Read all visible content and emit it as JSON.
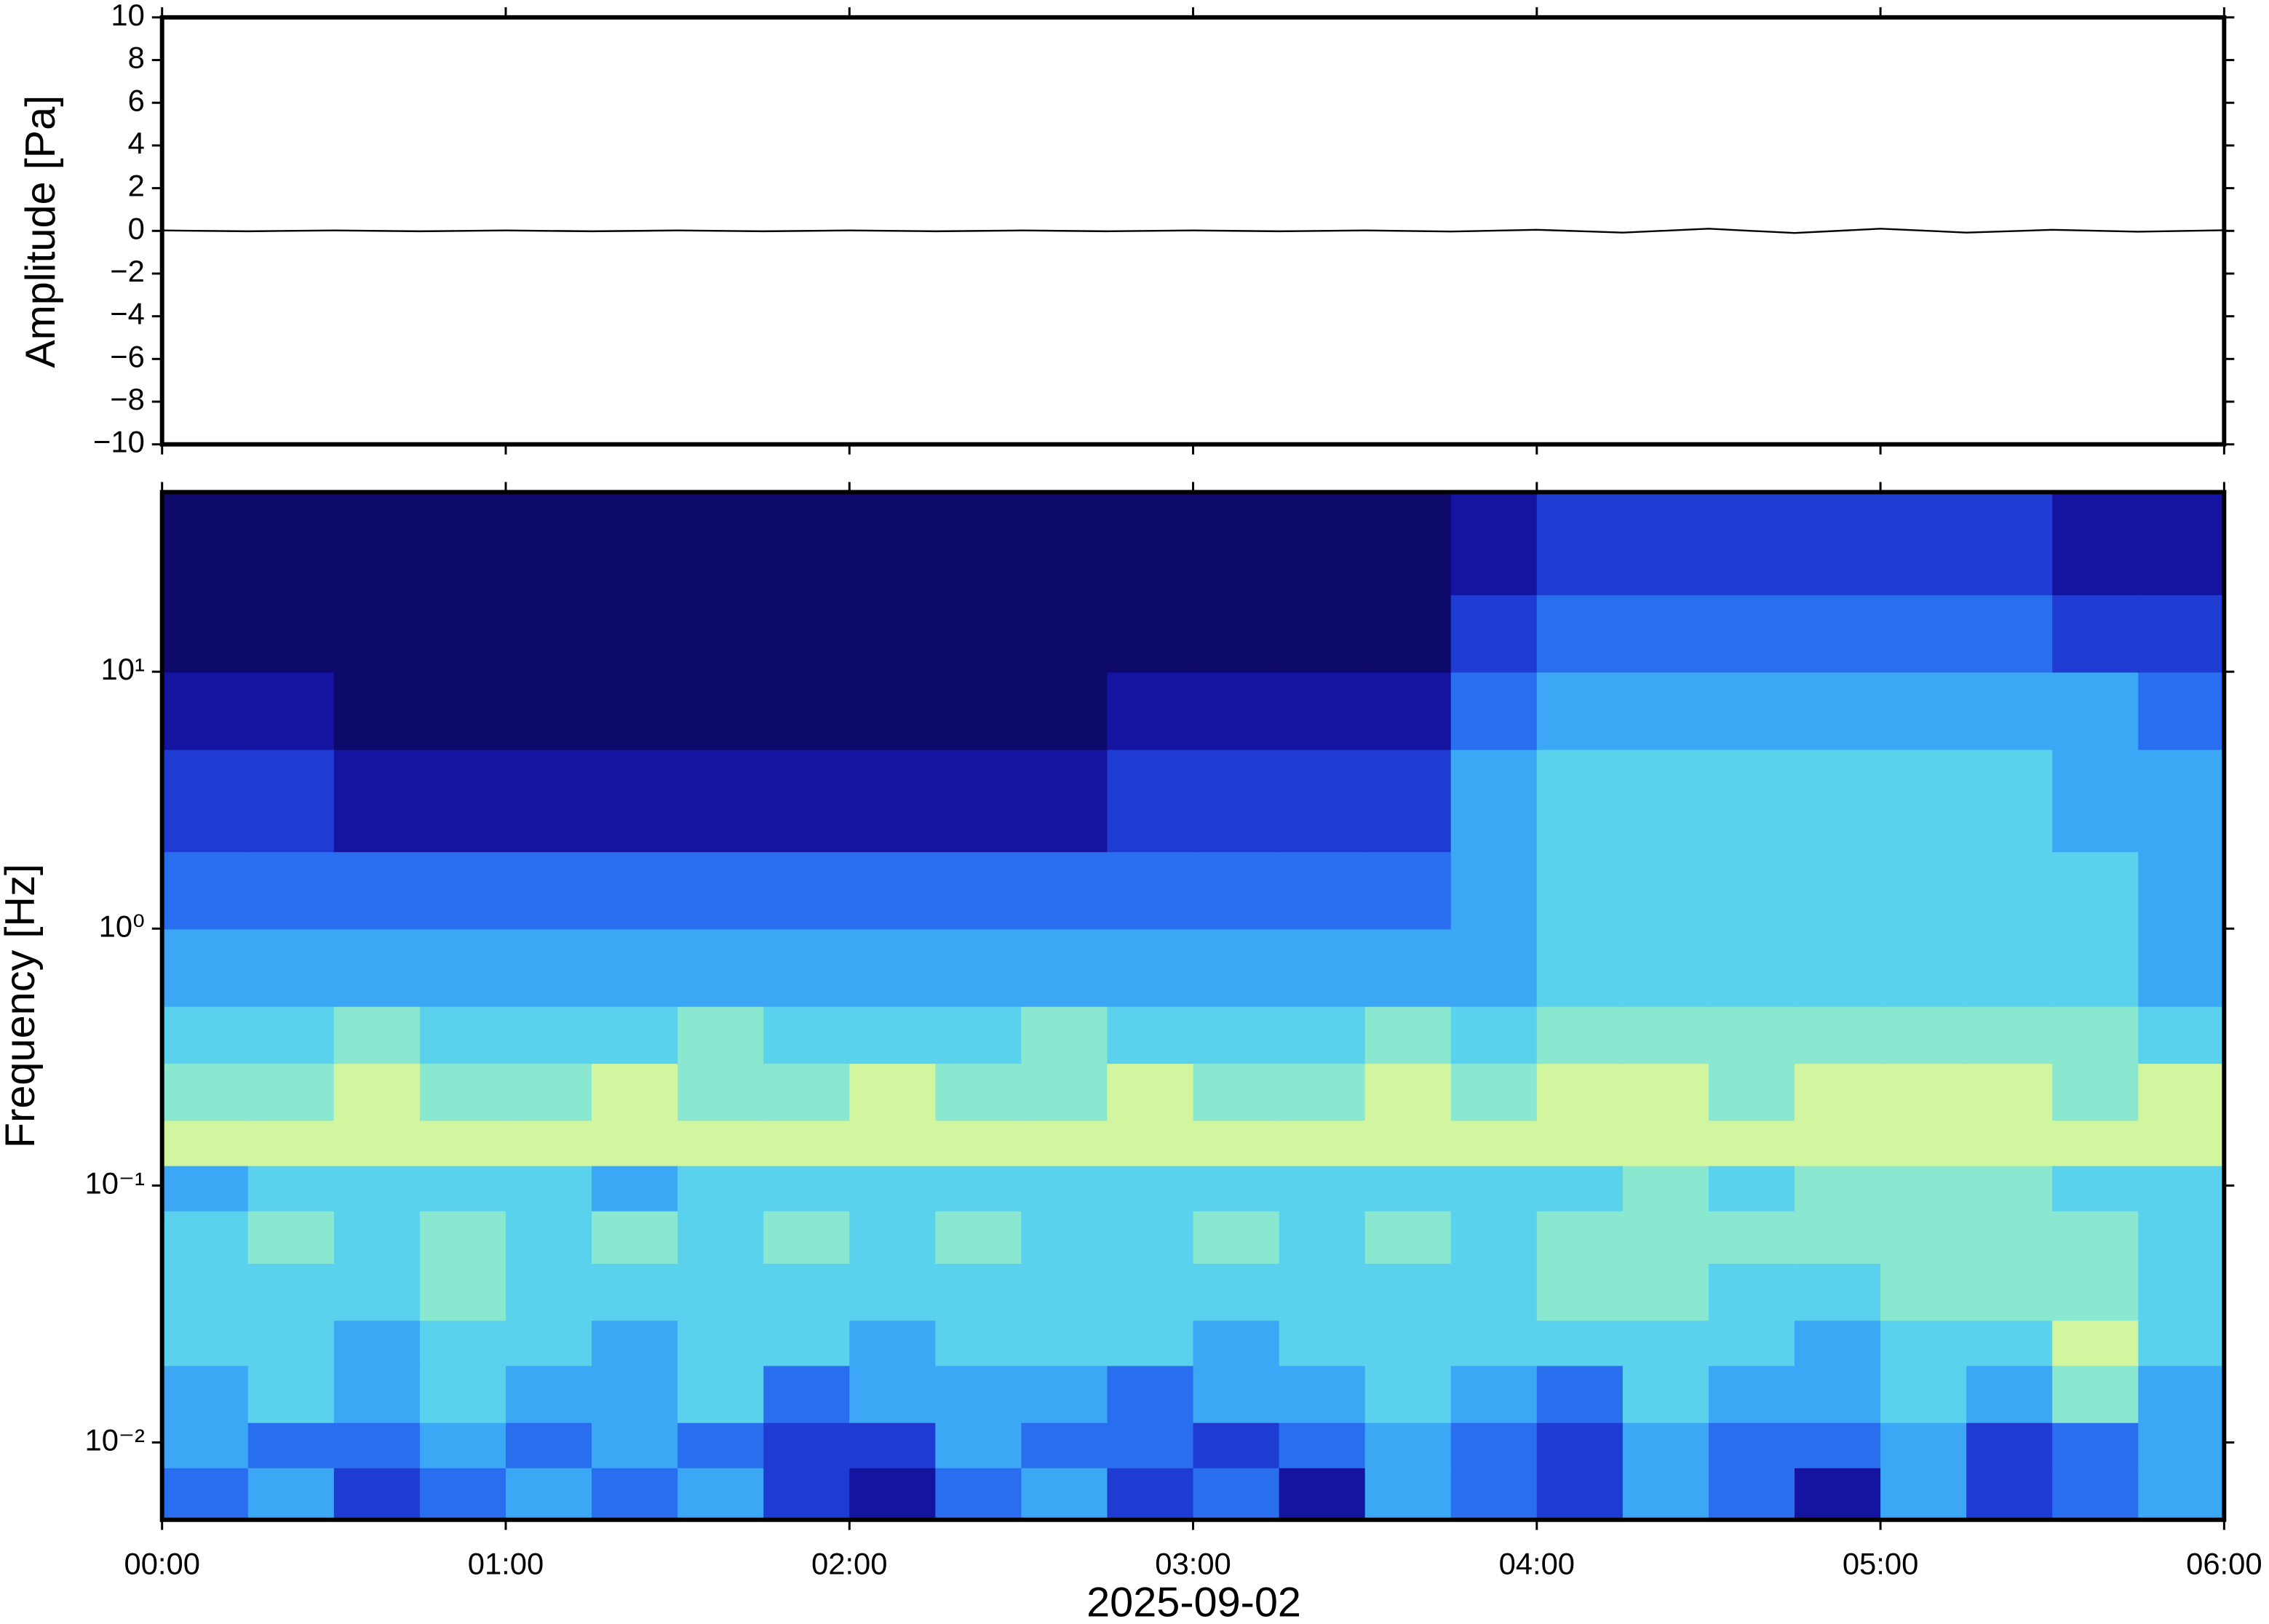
{
  "chart_data": [
    {
      "type": "line",
      "ylabel": "Amplitude [Pa]",
      "xlim": [
        0,
        6
      ],
      "ylim": [
        -10,
        10
      ],
      "yticks": [
        {
          "value": -10,
          "label": "−10"
        },
        {
          "value": -8,
          "label": "−8"
        },
        {
          "value": -6,
          "label": "−6"
        },
        {
          "value": -4,
          "label": "−4"
        },
        {
          "value": -2,
          "label": "−2"
        },
        0,
        2,
        4,
        6,
        8,
        10
      ],
      "x": [
        0,
        0.25,
        0.5,
        0.75,
        1,
        1.25,
        1.5,
        1.75,
        2,
        2.25,
        2.5,
        2.75,
        3,
        3.25,
        3.5,
        3.75,
        4,
        4.25,
        4.5,
        4.75,
        5,
        5.25,
        5.5,
        5.75,
        6
      ],
      "series": [
        {
          "color": "#000000",
          "values": [
            0.02,
            -0.02,
            0.02,
            -0.02,
            0.02,
            -0.02,
            0.02,
            -0.02,
            0.02,
            -0.02,
            0.02,
            -0.02,
            0.02,
            -0.02,
            0.02,
            -0.03,
            0.05,
            -0.08,
            0.1,
            -0.1,
            0.1,
            -0.08,
            0.05,
            -0.04,
            0.03
          ]
        }
      ]
    },
    {
      "type": "heatmap",
      "ylabel": "Frequency [Hz]",
      "xlabel": "2025-09-02",
      "xlim": [
        0,
        6
      ],
      "ylim": [
        0.005,
        50
      ],
      "log_y": true,
      "xticks": [
        {
          "value": 0,
          "label": "00:00"
        },
        {
          "value": 1,
          "label": "01:00"
        },
        {
          "value": 2,
          "label": "02:00"
        },
        {
          "value": 3,
          "label": "03:00"
        },
        {
          "value": 4,
          "label": "04:00"
        },
        {
          "value": 5,
          "label": "05:00"
        },
        {
          "value": 6,
          "label": "06:00"
        }
      ],
      "yticks": [
        {
          "value": 0.01,
          "label": "10⁻²"
        },
        {
          "value": 0.1,
          "label": "10⁻¹"
        },
        {
          "value": 1,
          "label": "10⁰"
        },
        {
          "value": 10,
          "label": "10¹"
        }
      ],
      "colormap": [
        "#0d0a6b",
        "#1414a0",
        "#1e3cd2",
        "#2a6ef0",
        "#3ca8f5",
        "#5ad2ee",
        "#8ae8d0",
        "#d2f5a0"
      ],
      "x_edges": [
        0,
        0.25,
        0.5,
        0.75,
        1,
        1.25,
        1.5,
        1.75,
        2,
        2.25,
        2.5,
        2.75,
        3,
        3.25,
        3.5,
        3.75,
        4,
        4.25,
        4.5,
        4.75,
        5,
        5.25,
        5.5,
        5.75,
        6
      ],
      "y_edges": [
        0.005,
        0.008,
        0.012,
        0.02,
        0.03,
        0.05,
        0.08,
        0.12,
        0.18,
        0.3,
        0.5,
        1,
        2,
        5,
        10,
        20,
        50
      ],
      "values": [
        [
          3,
          4,
          2,
          3,
          4,
          3,
          4,
          2,
          1,
          3,
          4,
          2,
          3,
          1,
          4,
          3,
          2,
          4,
          3,
          1,
          4,
          2,
          3,
          4
        ],
        [
          4,
          3,
          3,
          4,
          3,
          4,
          3,
          2,
          2,
          4,
          3,
          3,
          2,
          3,
          4,
          3,
          2,
          4,
          3,
          3,
          4,
          2,
          3,
          4
        ],
        [
          4,
          5,
          4,
          5,
          4,
          4,
          5,
          3,
          4,
          4,
          4,
          3,
          4,
          4,
          5,
          4,
          3,
          5,
          4,
          4,
          5,
          4,
          6,
          4
        ],
        [
          5,
          5,
          4,
          5,
          5,
          4,
          5,
          5,
          4,
          5,
          5,
          5,
          4,
          5,
          5,
          5,
          5,
          5,
          5,
          4,
          5,
          5,
          7,
          5
        ],
        [
          5,
          5,
          5,
          6,
          5,
          5,
          5,
          5,
          5,
          5,
          5,
          5,
          5,
          5,
          5,
          5,
          6,
          6,
          5,
          5,
          6,
          6,
          6,
          5
        ],
        [
          5,
          6,
          5,
          6,
          5,
          6,
          5,
          6,
          5,
          6,
          5,
          5,
          6,
          5,
          6,
          5,
          6,
          6,
          6,
          6,
          6,
          6,
          6,
          5
        ],
        [
          4,
          5,
          5,
          5,
          5,
          4,
          5,
          5,
          5,
          5,
          5,
          5,
          5,
          5,
          5,
          5,
          5,
          6,
          5,
          6,
          6,
          6,
          5,
          5
        ],
        [
          7,
          7,
          7,
          7,
          7,
          7,
          7,
          7,
          7,
          7,
          7,
          7,
          7,
          7,
          7,
          7,
          7,
          7,
          7,
          7,
          7,
          7,
          7,
          7
        ],
        [
          6,
          6,
          7,
          6,
          6,
          7,
          6,
          6,
          7,
          6,
          6,
          7,
          6,
          6,
          7,
          6,
          7,
          7,
          6,
          7,
          7,
          7,
          6,
          7
        ],
        [
          5,
          5,
          6,
          5,
          5,
          5,
          6,
          5,
          5,
          5,
          6,
          5,
          5,
          5,
          6,
          5,
          6,
          6,
          6,
          6,
          6,
          6,
          6,
          5
        ],
        [
          4,
          4,
          4,
          4,
          4,
          4,
          4,
          4,
          4,
          4,
          4,
          4,
          4,
          4,
          4,
          4,
          5,
          5,
          5,
          5,
          5,
          5,
          5,
          4
        ],
        [
          3,
          3,
          3,
          3,
          3,
          3,
          3,
          3,
          3,
          3,
          3,
          3,
          3,
          3,
          3,
          4,
          5,
          5,
          5,
          5,
          5,
          5,
          5,
          4
        ],
        [
          2,
          2,
          1,
          1,
          1,
          1,
          1,
          1,
          1,
          1,
          1,
          2,
          2,
          2,
          2,
          4,
          5,
          5,
          5,
          5,
          5,
          5,
          4,
          4
        ],
        [
          1,
          1,
          0,
          0,
          0,
          0,
          0,
          0,
          0,
          0,
          0,
          1,
          1,
          1,
          1,
          3,
          4,
          4,
          4,
          4,
          4,
          4,
          4,
          3
        ],
        [
          0,
          0,
          0,
          0,
          0,
          0,
          0,
          0,
          0,
          0,
          0,
          0,
          0,
          0,
          0,
          2,
          3,
          3,
          3,
          3,
          3,
          3,
          2,
          2
        ],
        [
          0,
          0,
          0,
          0,
          0,
          0,
          0,
          0,
          0,
          0,
          0,
          0,
          0,
          0,
          0,
          1,
          2,
          2,
          2,
          2,
          2,
          2,
          1,
          1
        ]
      ]
    }
  ]
}
